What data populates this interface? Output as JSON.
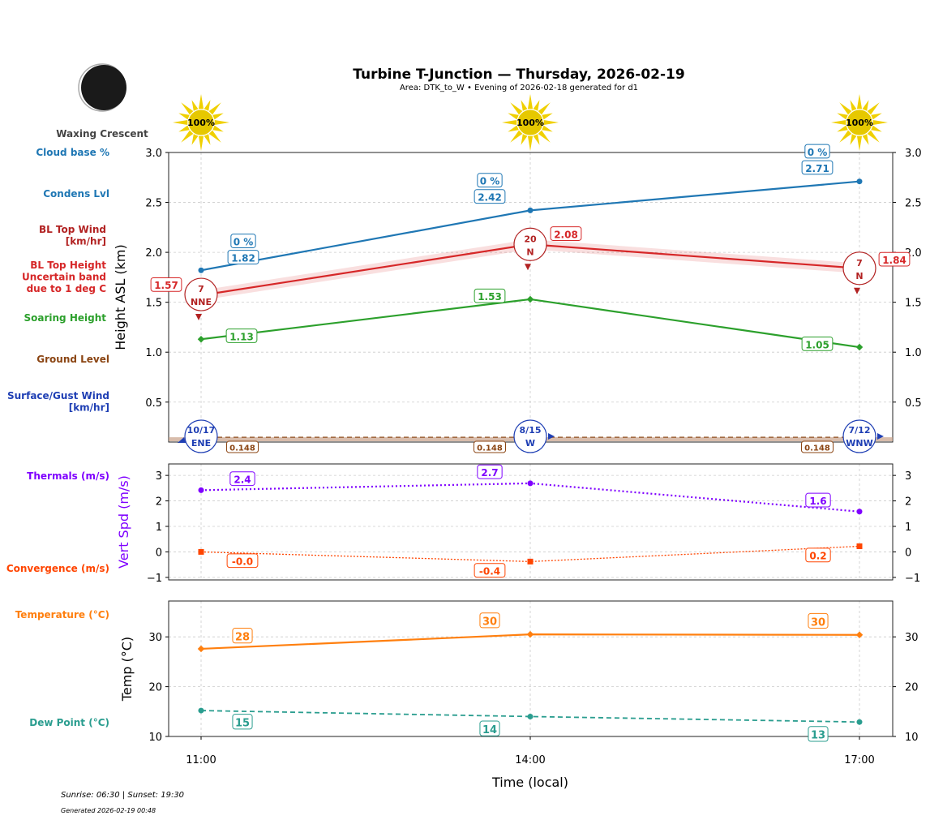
{
  "header": {
    "title": "Turbine T-Junction — Thursday, 2026-02-19",
    "subtitle": "Area: DTK_to_W • Evening of 2026-02-18 generated for d1",
    "moon_phase": "Waxing Crescent"
  },
  "footer": {
    "sun": "Sunrise: 06:30 | Sunset: 19:30",
    "generated": "Generated 2026-02-19 00:48"
  },
  "side_labels": [
    {
      "text": "Cloud base %",
      "color": "#1f77b4"
    },
    {
      "text": "Condens Lvl",
      "color": "#1f77b4"
    },
    {
      "text": "BL Top Wind\n[km/hr]",
      "color": "#b22222"
    },
    {
      "text": "BL Top Height\nUncertain band\ndue to 1 deg C",
      "color": "#d62728"
    },
    {
      "text": "Soaring Height",
      "color": "#2ca02c"
    },
    {
      "text": "Ground Level",
      "color": "#8b4513"
    },
    {
      "text": "Surface/Gust Wind\n[km/hr]",
      "color": "#1f3fb4"
    },
    {
      "text": "Thermals (m/s)",
      "color": "#7f00ff"
    },
    {
      "text": "Convergence (m/s)",
      "color": "#ff4500"
    },
    {
      "text": "Temperature (°C)",
      "color": "#ff7f0e"
    },
    {
      "text": "Dew Point (°C)",
      "color": "#2a9d8f"
    }
  ],
  "chart_data": {
    "type": "line",
    "x": [
      "11:00",
      "14:00",
      "17:00"
    ],
    "xlabel": "Time (local)",
    "sun_cover": [
      "100%",
      "100%",
      "100%"
    ],
    "panels": [
      {
        "ylabel": "Height ASL (km)",
        "ylim": [
          0.1,
          3.0
        ],
        "yticks": [
          0.5,
          1.0,
          1.5,
          2.0,
          2.5,
          3.0
        ],
        "grid": true,
        "series": [
          {
            "key": "condens",
            "values": [
              1.82,
              2.42,
              2.71
            ],
            "labels": [
              "1.82",
              "2.42",
              "2.71"
            ],
            "cloud_base": [
              "0 %",
              "0 %",
              "0 %"
            ],
            "color": "#1f77b4"
          },
          {
            "key": "bl_top",
            "values": [
              1.57,
              2.08,
              1.84
            ],
            "labels": [
              "1.57",
              "2.08",
              "1.84"
            ],
            "band": 0.05,
            "color": "#d62728"
          },
          {
            "key": "soaring",
            "values": [
              1.13,
              1.53,
              1.05
            ],
            "labels": [
              "1.13",
              "1.53",
              "1.05"
            ],
            "color": "#2ca02c"
          },
          {
            "key": "ground",
            "values": [
              0.148,
              0.148,
              0.148
            ],
            "labels": [
              "0.148",
              "0.148",
              "0.148"
            ],
            "color": "#8b4513"
          }
        ],
        "bl_wind": [
          {
            "speed": "7",
            "dir": "NNE"
          },
          {
            "speed": "20",
            "dir": "N"
          },
          {
            "speed": "7",
            "dir": "N"
          }
        ],
        "surface_wind": [
          {
            "speed": "10/17",
            "dir": "ENE"
          },
          {
            "speed": "8/15",
            "dir": "W"
          },
          {
            "speed": "7/12",
            "dir": "WNW"
          }
        ]
      },
      {
        "ylabel": "Vert Spd (m/s)",
        "ylim": [
          -1.1,
          3.45
        ],
        "yticks": [
          -1,
          0,
          1,
          2,
          3
        ],
        "grid": true,
        "series": [
          {
            "key": "thermals",
            "values": [
              2.42,
              2.69,
              1.58
            ],
            "labels": [
              "2.4",
              "2.7",
              "1.6"
            ],
            "color": "#7f00ff"
          },
          {
            "key": "convergence",
            "values": [
              0.0,
              -0.38,
              0.22
            ],
            "labels": [
              "-0.0",
              "-0.4",
              "0.2"
            ],
            "color": "#ff4500"
          }
        ]
      },
      {
        "ylabel": "Temp (°C)",
        "ylim": [
          10,
          37.2
        ],
        "yticks": [
          10,
          20,
          30
        ],
        "grid": true,
        "series": [
          {
            "key": "temperature",
            "values": [
              27.6,
              30.5,
              30.4
            ],
            "labels": [
              "28",
              "30",
              "30"
            ],
            "color": "#ff7f0e"
          },
          {
            "key": "dewpoint",
            "values": [
              15.2,
              14.0,
              12.9
            ],
            "labels": [
              "15",
              "14",
              "13"
            ],
            "color": "#2a9d8f"
          }
        ]
      }
    ]
  }
}
